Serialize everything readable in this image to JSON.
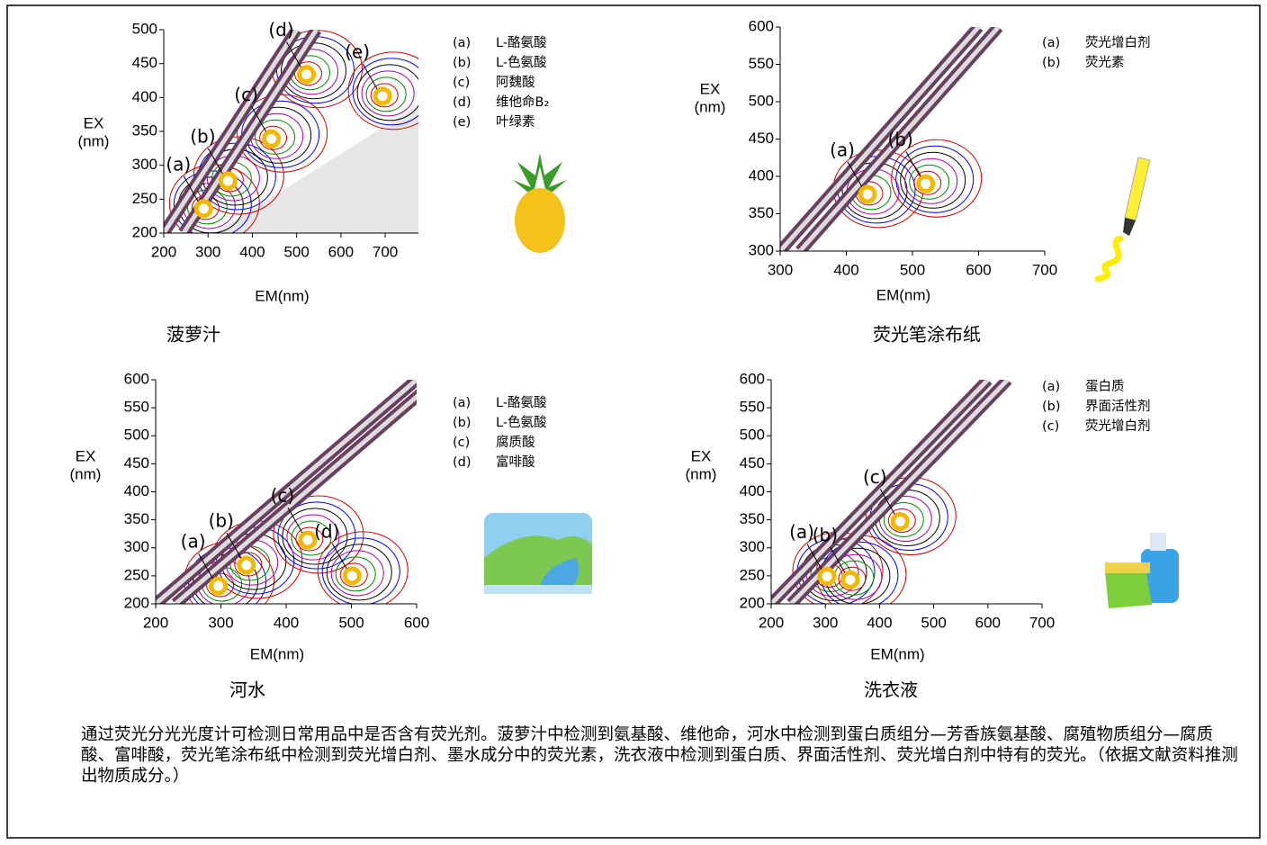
{
  "chart_data": [
    {
      "type": "contour",
      "xlabel": "EM(nm)",
      "ylabel": [
        "EX",
        "(nm)"
      ],
      "caption": "菠萝汁",
      "xlim": [
        200,
        775
      ],
      "ylim": [
        200,
        500
      ],
      "xticks": [
        200,
        300,
        400,
        500,
        600,
        700
      ],
      "yticks": [
        200,
        250,
        300,
        350,
        400,
        450,
        500
      ],
      "peaks": [
        {
          "label": "(a)",
          "x": 290,
          "y": 236
        },
        {
          "label": "(b)",
          "x": 345,
          "y": 277
        },
        {
          "label": "(c)",
          "x": 443,
          "y": 339
        },
        {
          "label": "(d)",
          "x": 522,
          "y": 434
        },
        {
          "label": "(e)",
          "x": 694,
          "y": 402
        }
      ],
      "legend": [
        {
          "key": "(a)",
          "name": "L-酪氨酸"
        },
        {
          "key": "(b)",
          "name": "L-色氨酸"
        },
        {
          "key": "(c)",
          "name": "阿魏酸"
        },
        {
          "key": "(d)",
          "name": "维他命B₂"
        },
        {
          "key": "(e)",
          "name": "叶绿素"
        }
      ]
    },
    {
      "type": "contour",
      "xlabel": "EM(nm)",
      "ylabel": [
        "EX",
        "(nm)"
      ],
      "caption": "荧光笔涂布纸",
      "xlim": [
        300,
        700
      ],
      "ylim": [
        300,
        600
      ],
      "xticks": [
        300,
        400,
        500,
        600,
        700
      ],
      "yticks": [
        300,
        350,
        400,
        450,
        500,
        550,
        600
      ],
      "peaks": [
        {
          "label": "(a)",
          "x": 432,
          "y": 376
        },
        {
          "label": "(b)",
          "x": 520,
          "y": 390
        }
      ],
      "legend": [
        {
          "key": "(a)",
          "name": "荧光增白剂"
        },
        {
          "key": "(b)",
          "name": "荧光素"
        }
      ]
    },
    {
      "type": "contour",
      "xlabel": "EM(nm)",
      "ylabel": [
        "EX",
        "(nm)"
      ],
      "caption": "河水",
      "xlim": [
        200,
        600
      ],
      "ylim": [
        200,
        600
      ],
      "xticks": [
        200,
        300,
        400,
        500,
        600
      ],
      "yticks": [
        200,
        250,
        300,
        350,
        400,
        450,
        500,
        550,
        600
      ],
      "peaks": [
        {
          "label": "(a)",
          "x": 296,
          "y": 232
        },
        {
          "label": "(b)",
          "x": 339,
          "y": 269
        },
        {
          "label": "(c)",
          "x": 433,
          "y": 314
        },
        {
          "label": "(d)",
          "x": 501,
          "y": 250
        }
      ],
      "legend": [
        {
          "key": "(a)",
          "name": "L-酪氨酸"
        },
        {
          "key": "(b)",
          "name": "L-色氨酸"
        },
        {
          "key": "(c)",
          "name": "腐质酸"
        },
        {
          "key": "(d)",
          "name": "富啡酸"
        }
      ]
    },
    {
      "type": "contour",
      "xlabel": "EM(nm)",
      "ylabel": [
        "EX",
        "(nm)"
      ],
      "caption": "洗衣液",
      "xlim": [
        200,
        700
      ],
      "ylim": [
        200,
        600
      ],
      "xticks": [
        200,
        300,
        400,
        500,
        600,
        700
      ],
      "yticks": [
        200,
        250,
        300,
        350,
        400,
        450,
        500,
        550,
        600
      ],
      "peaks": [
        {
          "label": "(a)",
          "x": 303,
          "y": 249
        },
        {
          "label": "(b)",
          "x": 346,
          "y": 243
        },
        {
          "label": "(c)",
          "x": 438,
          "y": 347
        }
      ],
      "legend": [
        {
          "key": "(a)",
          "name": "蛋白质"
        },
        {
          "key": "(b)",
          "name": "界面活性剂"
        },
        {
          "key": "(c)",
          "name": "荧光增白剂"
        }
      ]
    }
  ],
  "note": "通过荧光分光光度计可检测日常用品中是否含有荧光剂。菠萝汁中检测到氨基酸、维他命，河水中检测到蛋白质组分—芳香族氨基酸、腐殖物质组分—腐质酸、富啡酸，荧光笔涂布纸中检测到荧光增白剂、墨水成分中的荧光素，洗衣液中检测到蛋白质、界面活性剂、荧光增白剂中特有的荧光。（依据文献资料推测出物质成分。）"
}
